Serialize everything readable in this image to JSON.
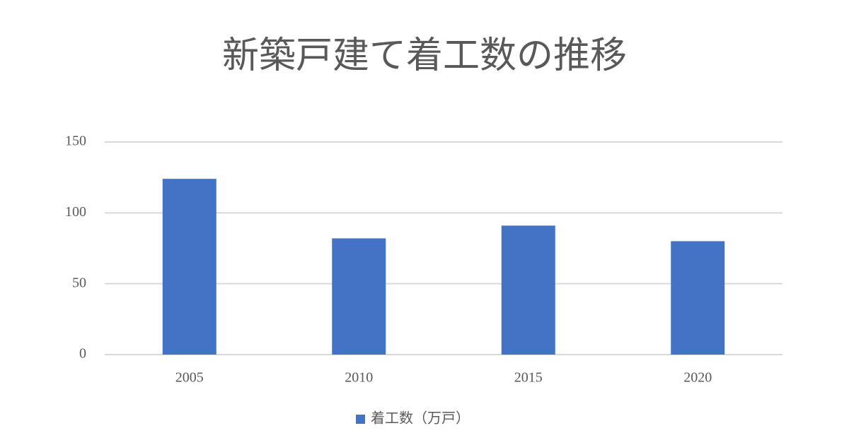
{
  "chart_data": {
    "type": "bar",
    "title": "新築戸建て着工数の推移",
    "categories": [
      "2005",
      "2010",
      "2015",
      "2020"
    ],
    "series": [
      {
        "name": "着工数（万戸）",
        "color": "#4472c4",
        "values": [
          124,
          82,
          91,
          80
        ]
      }
    ],
    "ylim": [
      0,
      150
    ],
    "yticks": [
      0,
      50,
      100,
      150
    ],
    "grid": true,
    "legend": "bottom"
  }
}
